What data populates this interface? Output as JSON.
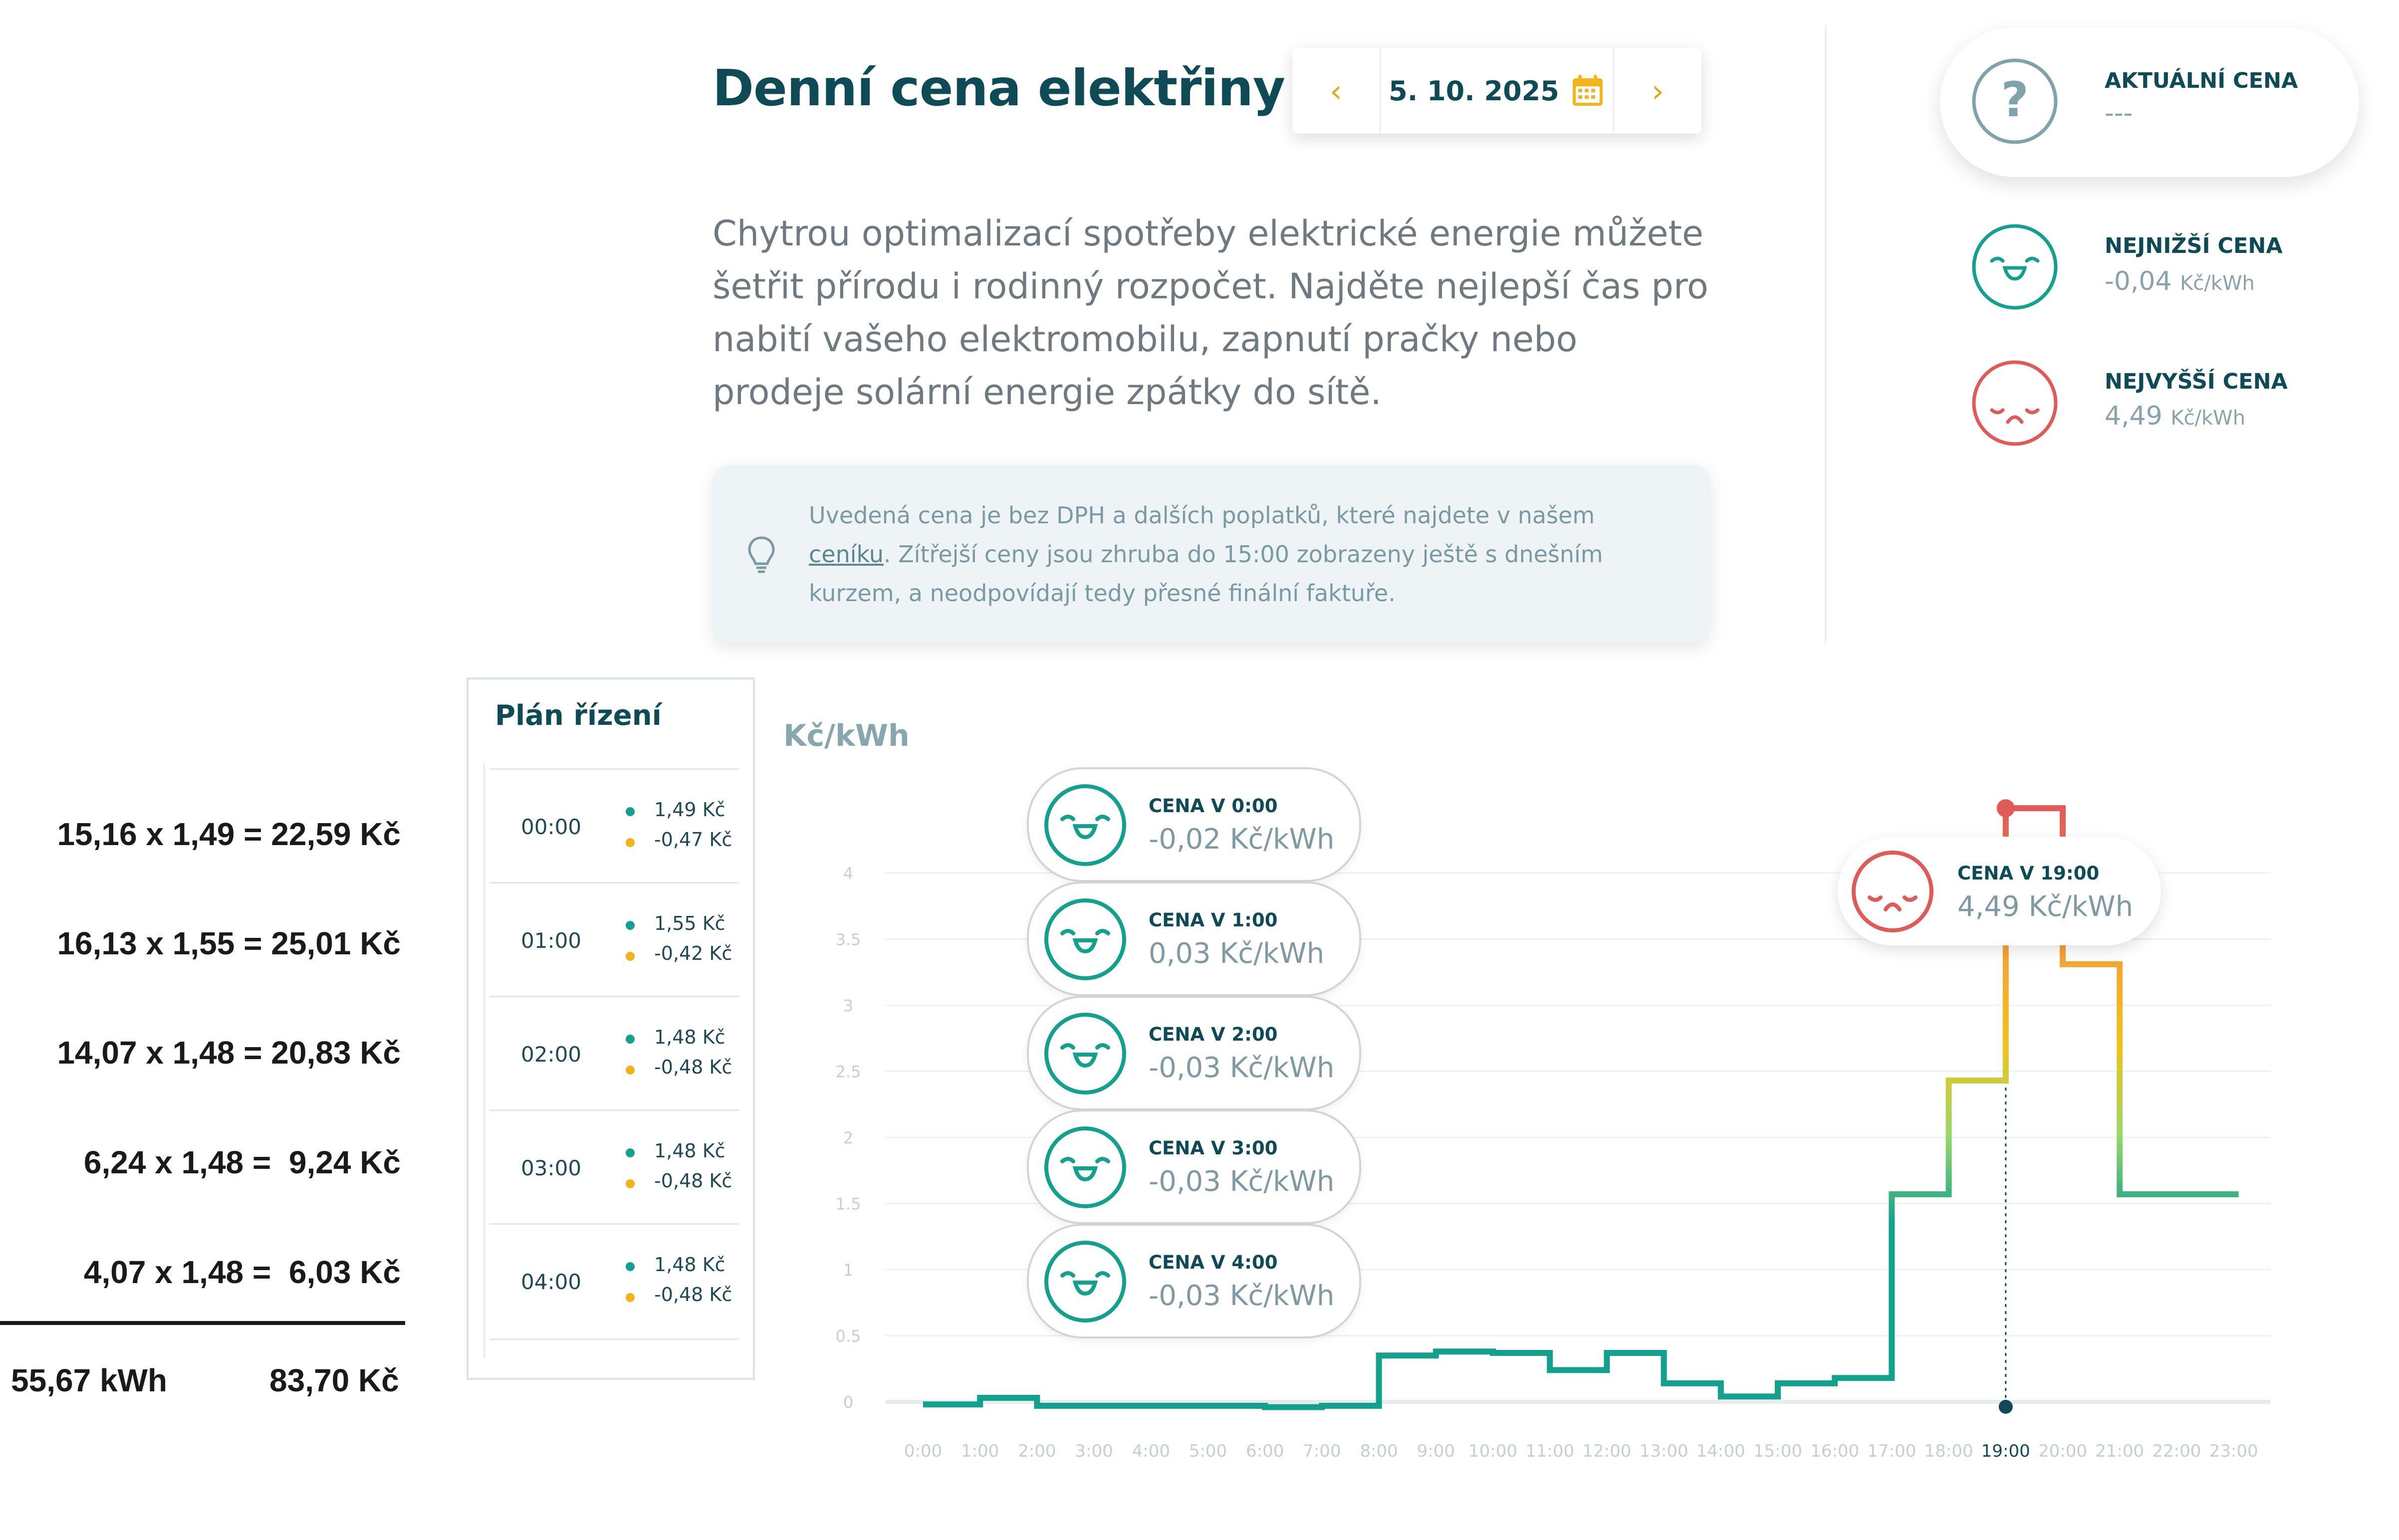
{
  "header": {
    "title": "Denní cena elektřiny",
    "date": "5. 10. 2025",
    "prev_label": "‹",
    "next_label": "›",
    "calendar_icon": "calendar-icon"
  },
  "description": "Chytrou optimalizací spotřeby elektrické energie můžete šetřit přírodu i rodinný rozpočet. Najděte nejlepší čas pro nabití vašeho elektromobilu, zapnutí pračky nebo prodeje solární energie zpátky do sítě.",
  "note": {
    "text_before_link": "Uvedená cena je bez DPH a dalších poplatků, které najdete v našem ",
    "link": "ceníku",
    "text_after_link": ". Zítřejší ceny jsou zhruba do 15:00 zobrazeny ještě s dnešním kurzem, a neodpovídají tedy přesné finální faktuře.",
    "icon": "lightbulb-icon"
  },
  "side": {
    "current": {
      "label": "AKTUÁLNÍ CENA",
      "value": "---",
      "icon": "question-icon"
    },
    "lowest": {
      "label": "NEJNIŽŠÍ CENA",
      "value": "-0,04",
      "unit": "Kč/kWh",
      "icon": "happy-face-icon"
    },
    "highest": {
      "label": "NEJVYŠŠÍ CENA",
      "value": "4,49",
      "unit": "Kč/kWh",
      "icon": "sad-face-icon"
    }
  },
  "plan": {
    "title": "Plán řízení",
    "rows": [
      {
        "time": "00:00",
        "price": "1,49 Kč",
        "sub": "-0,47 Kč"
      },
      {
        "time": "01:00",
        "price": "1,55 Kč",
        "sub": "-0,42 Kč"
      },
      {
        "time": "02:00",
        "price": "1,48 Kč",
        "sub": "-0,48 Kč"
      },
      {
        "time": "03:00",
        "price": "1,48 Kč",
        "sub": "-0,48 Kč"
      },
      {
        "time": "04:00",
        "price": "1,48 Kč",
        "sub": "-0,48 Kč"
      }
    ]
  },
  "calculations": {
    "lines": [
      "15,16 x 1,49 = 22,59 Kč",
      "16,13 x 1,55 = 25,01 Kč",
      "14,07 x 1,48 = 20,83 Kč",
      "6,24 x 1,48 =  9,24 Kč",
      "4,07 x 1,48 =  6,03 Kč"
    ],
    "total_kwh": "55,67 kWh",
    "total_price": "83,70 Kč"
  },
  "bubbles": [
    {
      "label": "CENA V 0:00",
      "value": "-0,02 Kč/kWh"
    },
    {
      "label": "CENA V 1:00",
      "value": "0,03 Kč/kWh"
    },
    {
      "label": "CENA V 2:00",
      "value": "-0,03 Kč/kWh"
    },
    {
      "label": "CENA V 3:00",
      "value": "-0,03 Kč/kWh"
    },
    {
      "label": "CENA V 4:00",
      "value": "-0,03 Kč/kWh"
    }
  ],
  "peak_bubble": {
    "label": "CENA V 19:00",
    "value": "4,49 Kč/kWh"
  },
  "chart_data": {
    "type": "line",
    "step": true,
    "ylabel": "Kč/kWh",
    "ylim": [
      0,
      4
    ],
    "yticks": [
      "0",
      "0.5",
      "1",
      "1.5",
      "2",
      "2.5",
      "3",
      "3.5",
      "4"
    ],
    "categories": [
      "0:00",
      "1:00",
      "2:00",
      "3:00",
      "4:00",
      "5:00",
      "6:00",
      "7:00",
      "8:00",
      "9:00",
      "10:00",
      "11:00",
      "12:00",
      "13:00",
      "14:00",
      "15:00",
      "16:00",
      "17:00",
      "18:00",
      "19:00",
      "20:00",
      "21:00",
      "22:00",
      "23:00"
    ],
    "values": [
      -0.02,
      0.03,
      -0.03,
      -0.03,
      -0.03,
      -0.03,
      -0.04,
      -0.03,
      0.35,
      0.38,
      0.37,
      0.24,
      0.37,
      0.14,
      0.04,
      0.14,
      0.18,
      1.57,
      2.43,
      4.49,
      3.31,
      1.57,
      1.57,
      1.57
    ],
    "highlight_category": "19:00",
    "grid": true,
    "colors": {
      "low": "#13a08d",
      "mid": "#f1c21b",
      "high": "#e05a57",
      "axis_tick": "#c4cfd2",
      "highlight_tick": "#0e4b56"
    }
  }
}
